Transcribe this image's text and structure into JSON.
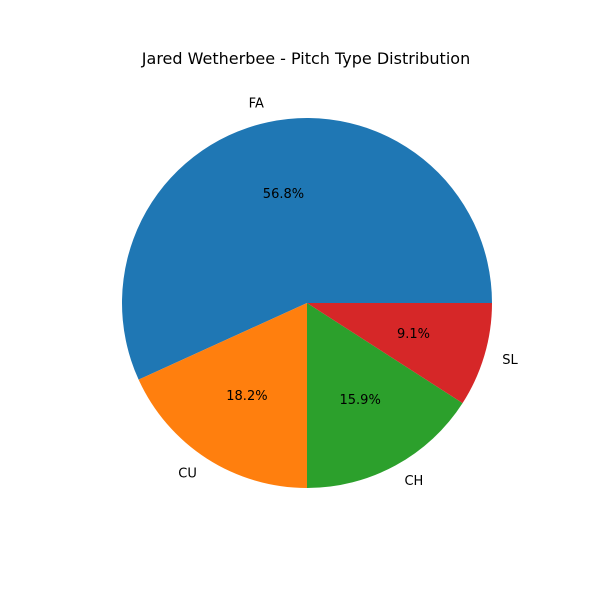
{
  "chart_data": {
    "type": "pie",
    "title": "Jared Wetherbee - Pitch Type Distribution",
    "categories": [
      "FA",
      "CU",
      "CH",
      "SL"
    ],
    "values": [
      56.8,
      18.2,
      15.9,
      9.1
    ],
    "value_labels": [
      "56.8%",
      "18.2%",
      "15.9%",
      "9.1%"
    ],
    "colors": [
      "#1f77b4",
      "#ff7f0e",
      "#2ca02c",
      "#d62728"
    ],
    "start_angle": 0,
    "direction": "counterclockwise",
    "legend": "none"
  }
}
